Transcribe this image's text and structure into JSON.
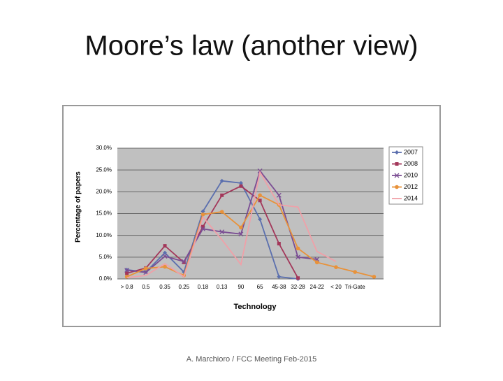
{
  "slide_title": "Moore’s law (another view)",
  "footer": "A. Marchioro / FCC Meeting Feb-2015",
  "chart_data": {
    "type": "line",
    "x_label": "Technology",
    "y_label": "Percentage of papers",
    "categories": [
      "> 0.8",
      "0.5",
      "0.35",
      "0.25",
      "0.18",
      "0.13",
      "90",
      "65",
      "45-38",
      "32-28",
      "24-22",
      "< 20",
      "Tri-Gate",
      null
    ],
    "series": [
      {
        "name": "2007",
        "color": "#5b6fae",
        "marker": "diamond",
        "values": [
          2.1,
          1.6,
          6.0,
          1.6,
          15.5,
          22.5,
          22.0,
          13.7,
          0.5,
          0.0,
          null,
          null,
          null,
          null
        ]
      },
      {
        "name": "2008",
        "color": "#a3375a",
        "marker": "square",
        "values": [
          1.3,
          2.5,
          7.6,
          3.8,
          12.0,
          19.2,
          21.3,
          18.0,
          8.1,
          0.2,
          null,
          null,
          null,
          null
        ]
      },
      {
        "name": "2010",
        "color": "#7a4c93",
        "marker": "x",
        "values": [
          2.0,
          1.5,
          5.2,
          4.0,
          11.5,
          10.8,
          10.3,
          24.8,
          19.2,
          5.0,
          4.5,
          null,
          null,
          null
        ]
      },
      {
        "name": "2012",
        "color": "#e8923a",
        "marker": "circle",
        "values": [
          0.5,
          2.4,
          2.8,
          0.8,
          14.8,
          15.4,
          11.8,
          19.2,
          17.0,
          7.0,
          3.8,
          2.7,
          1.6,
          0.5
        ]
      },
      {
        "name": "2014",
        "color": "#f0a0a8",
        "marker": "none",
        "values": [
          0.3,
          0.8,
          3.5,
          0.5,
          14.2,
          9.0,
          3.3,
          24.5,
          17.0,
          16.5,
          6.3,
          4.0,
          null,
          null
        ]
      }
    ],
    "ylim": [
      0,
      30
    ],
    "yticks": [
      {
        "value": 0,
        "label": "0.0%"
      },
      {
        "value": 5,
        "label": "5.0%"
      },
      {
        "value": 10,
        "label": "10.0%"
      },
      {
        "value": 15,
        "label": "15.0%"
      },
      {
        "value": 20,
        "label": "20.0%"
      },
      {
        "value": 25,
        "label": "25.0%"
      },
      {
        "value": 30,
        "label": "30.0%"
      }
    ],
    "grid": true,
    "legend": "right"
  }
}
